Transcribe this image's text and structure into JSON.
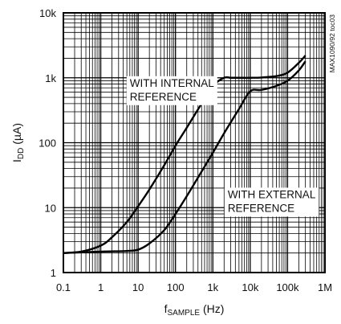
{
  "chart_data": {
    "type": "line",
    "x_scale": "log",
    "y_scale": "log",
    "xlim": [
      0.1,
      1000000
    ],
    "ylim": [
      1,
      10000
    ],
    "grid": true,
    "x_ticks": [
      {
        "value": 0.1,
        "label": "0.1"
      },
      {
        "value": 1,
        "label": "1"
      },
      {
        "value": 10,
        "label": "10"
      },
      {
        "value": 100,
        "label": "100"
      },
      {
        "value": 1000,
        "label": "1k"
      },
      {
        "value": 10000,
        "label": "10k"
      },
      {
        "value": 100000,
        "label": "100k"
      },
      {
        "value": 1000000,
        "label": "1M"
      }
    ],
    "y_ticks": [
      {
        "value": 1,
        "label": "1"
      },
      {
        "value": 10,
        "label": "10"
      },
      {
        "value": 100,
        "label": "100"
      },
      {
        "value": 1000,
        "label": "1k"
      },
      {
        "value": 10000,
        "label": "10k"
      }
    ],
    "xlabel": {
      "main": "f",
      "sub": "SAMPLE",
      "unit": " (Hz)"
    },
    "ylabel": {
      "main": "I",
      "sub": "DD",
      "unit": " (µA)"
    },
    "figure_code": "MAX1090/92 toc03",
    "series": [
      {
        "x": [
          0.1,
          0.3,
          1,
          2,
          5,
          10,
          20,
          50,
          100,
          200,
          500,
          1000,
          2000,
          3000,
          5000,
          10000,
          20000,
          50000,
          100000,
          200000,
          300000
        ],
        "y": [
          2,
          2.1,
          2.6,
          3.5,
          6,
          10.5,
          19,
          45,
          90,
          170,
          400,
          750,
          1000,
          1000,
          1000,
          1000,
          1010,
          1060,
          1200,
          1700,
          2200
        ]
      },
      {
        "x": [
          0.1,
          1,
          5,
          10,
          20,
          50,
          100,
          200,
          500,
          1000,
          2000,
          5000,
          10000,
          20000,
          50000,
          100000,
          200000,
          300000
        ],
        "y": [
          2,
          2.1,
          2.15,
          2.25,
          2.8,
          4.5,
          8,
          15,
          36,
          70,
          140,
          330,
          620,
          650,
          750,
          900,
          1300,
          1800
        ]
      }
    ],
    "annotations": [
      {
        "lines": [
          "WITH INTERNAL",
          "REFERENCE"
        ],
        "x": 6,
        "y": 730
      },
      {
        "lines": [
          "WITH EXTERNAL",
          "REFERENCE"
        ],
        "x": 2500,
        "y": 14
      }
    ]
  }
}
